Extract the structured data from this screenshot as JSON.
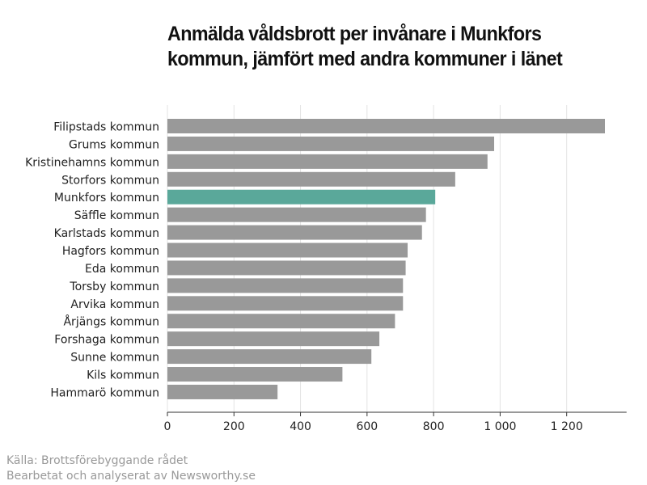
{
  "chart_data": {
    "type": "bar",
    "orientation": "horizontal",
    "title": "Anmälda våldsbrott per invånare i Munkfors kommun, jämfört med andra kommuner i länet",
    "categories": [
      "Filipstads kommun",
      "Grums kommun",
      "Kristinehamns kommun",
      "Storfors kommun",
      "Munkfors kommun",
      "Säffle kommun",
      "Karlstads kommun",
      "Hagfors kommun",
      "Eda kommun",
      "Torsby kommun",
      "Arvika kommun",
      "Årjängs kommun",
      "Forshaga kommun",
      "Sunne kommun",
      "Kils kommun",
      "Hammarö kommun"
    ],
    "values": [
      1315,
      982,
      962,
      865,
      805,
      777,
      765,
      722,
      716,
      708,
      708,
      684,
      637,
      613,
      526,
      331
    ],
    "highlight": "Munkfors kommun",
    "xlim": [
      0,
      1380
    ],
    "xticks": [
      0,
      200,
      400,
      600,
      800,
      1000,
      1200
    ],
    "xtick_labels": [
      "0",
      "200",
      "400",
      "600",
      "800",
      "1 000",
      "1 200"
    ],
    "grid": true,
    "colors": {
      "bar": "#999999",
      "highlight": "#5aa89a",
      "grid": "#e3e3e3",
      "axis": "#333333"
    }
  },
  "footer": {
    "source": "Källa: Brottsförebyggande rådet",
    "credit": "Bearbetat och analyserat av Newsworthy.se"
  }
}
